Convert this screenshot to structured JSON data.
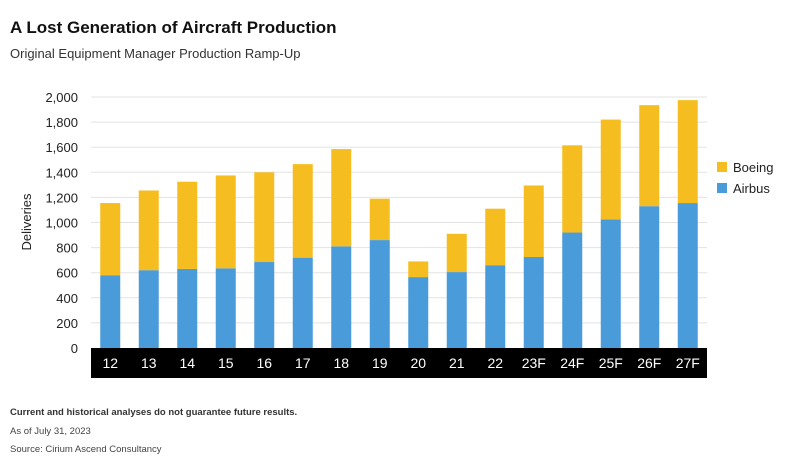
{
  "header": {
    "title": "A Lost Generation of Aircraft Production",
    "subtitle": "Original Equipment Manager Production Ramp-Up"
  },
  "footer": {
    "disclaimer": "Current and historical analyses do not guarantee future results.",
    "as_of": "As of July 31, 2023",
    "source": "Source: Cirium Ascend Consultancy"
  },
  "chart_data": {
    "type": "bar",
    "stacked": true,
    "title": "",
    "xlabel": "",
    "ylabel": "Deliveries",
    "ylim": [
      0,
      2000
    ],
    "yticks": [
      0,
      200,
      400,
      600,
      800,
      1000,
      1200,
      1400,
      1600,
      1800,
      2000
    ],
    "ytick_labels": [
      "0",
      "200",
      "400",
      "600",
      "800",
      "1,000",
      "1,200",
      "1,400",
      "1,600",
      "1,800",
      "2,000"
    ],
    "grid": true,
    "legend_position": "right",
    "categories": [
      "12",
      "13",
      "14",
      "15",
      "16",
      "17",
      "18",
      "19",
      "20",
      "21",
      "22",
      "23F",
      "24F",
      "25F",
      "26F",
      "27F"
    ],
    "series": [
      {
        "name": "Airbus",
        "color": "#4a9bd9",
        "values": [
          580,
          620,
          630,
          635,
          685,
          720,
          810,
          860,
          565,
          605,
          660,
          725,
          920,
          1025,
          1130,
          1155
        ]
      },
      {
        "name": "Boeing",
        "color": "#f5bd1f",
        "values": [
          575,
          635,
          695,
          740,
          715,
          745,
          775,
          330,
          125,
          305,
          450,
          570,
          695,
          795,
          805,
          820
        ]
      }
    ],
    "legend": [
      "Boeing",
      "Airbus"
    ],
    "axis_band_color": "#000000",
    "tick_label_color": "#ffffff"
  }
}
